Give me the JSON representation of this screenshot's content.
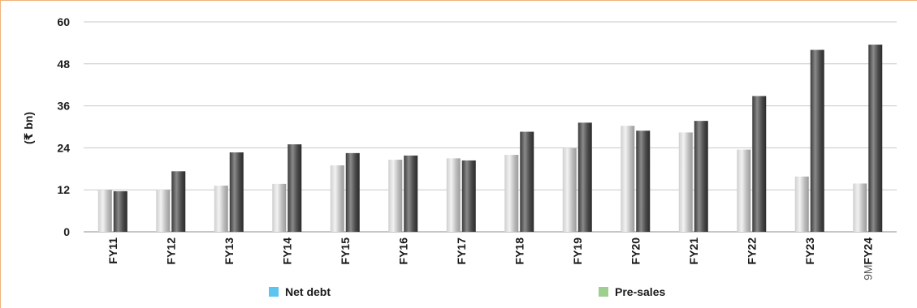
{
  "chart_data": {
    "type": "bar",
    "ylabel": "(₹ bn)",
    "ylim": [
      0,
      60
    ],
    "yticks": [
      0,
      12,
      24,
      36,
      48,
      60
    ],
    "grid": true,
    "legend_position": "bottom",
    "categories": [
      "FY11",
      "FY12",
      "FY13",
      "FY14",
      "FY15",
      "FY16",
      "FY17",
      "FY18",
      "FY19",
      "FY20",
      "FY21",
      "FY22",
      "FY23",
      "9MFY24"
    ],
    "category_parts": [
      null,
      null,
      null,
      null,
      null,
      null,
      null,
      null,
      null,
      null,
      null,
      null,
      null,
      {
        "light": "9M",
        "bold": "FY24"
      }
    ],
    "series": [
      {
        "name": "Net debt",
        "values": [
          12.0,
          12.0,
          13.2,
          13.7,
          19.0,
          20.6,
          21.0,
          22.0,
          23.9,
          30.3,
          28.4,
          23.5,
          15.8,
          13.8
        ],
        "legend_color": "#5bc5ef"
      },
      {
        "name": "Pre-sales",
        "values": [
          11.6,
          17.3,
          22.7,
          25.0,
          22.5,
          21.8,
          20.4,
          28.6,
          31.2,
          28.9,
          31.7,
          38.8,
          52.0,
          53.5
        ],
        "legend_color": "#9ecf8f"
      }
    ]
  }
}
